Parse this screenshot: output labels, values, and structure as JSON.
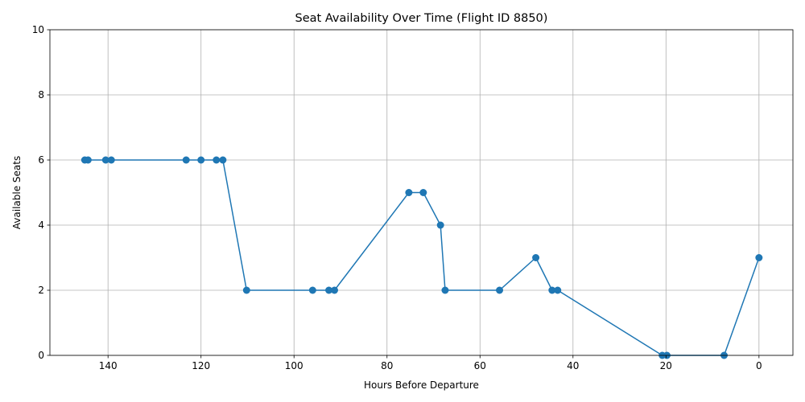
{
  "chart_data": {
    "type": "line",
    "title": "Seat Availability Over Time (Flight ID 8850)",
    "xlabel": "Hours Before Departure",
    "ylabel": "Available Seats",
    "xlim": [
      152.5,
      -7.3
    ],
    "ylim": [
      0,
      10
    ],
    "x_inverted": true,
    "xticks": [
      140,
      120,
      100,
      80,
      60,
      40,
      20,
      0
    ],
    "yticks": [
      0,
      2,
      4,
      6,
      8,
      10
    ],
    "grid": true,
    "series": [
      {
        "color": "#1f77b4",
        "marker": "circle",
        "x": [
          145,
          144.3,
          140.5,
          139.3,
          123.2,
          120,
          116.7,
          115.3,
          110.2,
          96,
          92.5,
          91.3,
          75.3,
          72.2,
          68.5,
          67.5,
          55.8,
          48,
          44.5,
          43.3,
          20.8,
          19.8,
          7.5,
          0
        ],
        "y": [
          6,
          6,
          6,
          6,
          6,
          6,
          6,
          6,
          2,
          2,
          2,
          2,
          5,
          5,
          4,
          2,
          2,
          3,
          2,
          2,
          0,
          0,
          0,
          3
        ]
      }
    ]
  }
}
